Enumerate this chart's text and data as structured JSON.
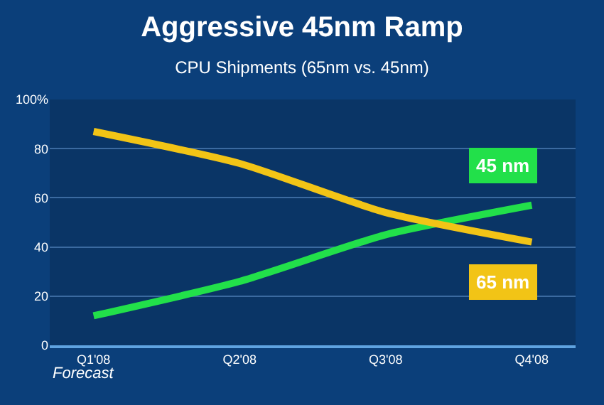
{
  "chart_data": {
    "type": "line",
    "title": "Aggressive 45nm Ramp",
    "subtitle": "CPU Shipments (65nm vs. 45nm)",
    "categories": [
      "Q1'08",
      "Q2'08",
      "Q3'08",
      "Q4'08"
    ],
    "series": [
      {
        "name": "45 nm",
        "color": "#22e04a",
        "values": [
          12,
          26,
          45,
          57
        ]
      },
      {
        "name": "65 nm",
        "color": "#f2c416",
        "values": [
          87,
          74,
          54,
          42
        ]
      }
    ],
    "ylim": [
      0,
      100
    ],
    "yticks": [
      0,
      20,
      40,
      60,
      80,
      {
        "value": 100,
        "label": "100%"
      }
    ],
    "grid": "y",
    "legend": false,
    "marker": "none",
    "line_style": "solid",
    "annotations": [
      "Forecast"
    ]
  }
}
